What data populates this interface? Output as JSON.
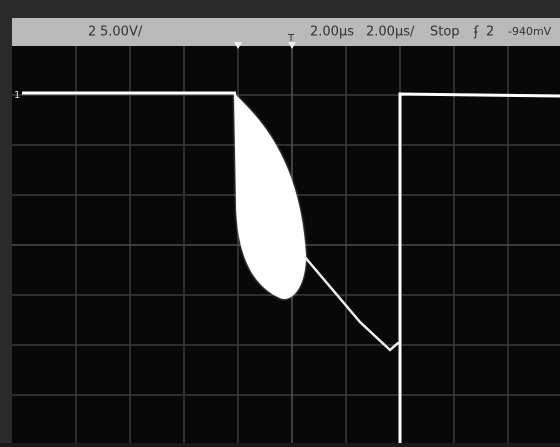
{
  "header": {
    "channel": "2",
    "scale": "5.00V/",
    "trigger_marker": "T",
    "delay": "2.00µs",
    "timebase": "2.00µs/",
    "run_state": "Stop",
    "trigger_source": "2",
    "trigger_level": "-940mV"
  },
  "screen": {
    "ground_marker": "1"
  }
}
